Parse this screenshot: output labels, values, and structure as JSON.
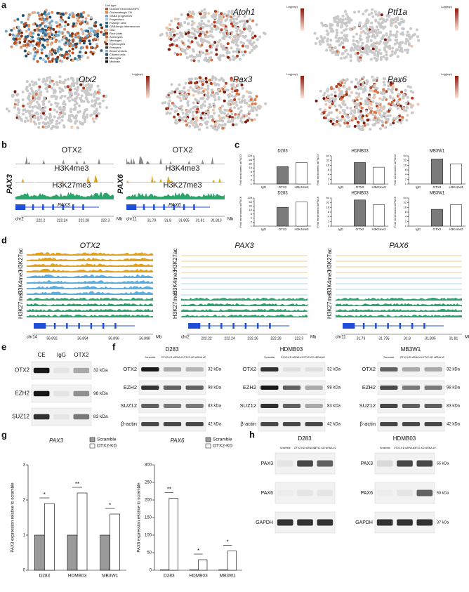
{
  "panel_labels": [
    "a",
    "b",
    "c",
    "d",
    "e",
    "f",
    "g",
    "h"
  ],
  "a": {
    "legend_title": "Cell type",
    "cell_types": [
      "Granule neurons/GNPs",
      "Glutamatergic CN",
      "GABA progenitors",
      "Progenitors",
      "Purkinje cells",
      "GABAergic interneurons",
      "Glia",
      "Roof plate",
      "Astrocytes",
      "Meninges",
      "Erythrocytes",
      "Pericytes",
      "Blood vessels",
      "Ciliated cells",
      "Microglia",
      "Midbrain"
    ],
    "genes": [
      "Atoh1",
      "Ptf1a",
      "Otx2",
      "Pax3",
      "Pax6"
    ],
    "scale_label": "Log(exp)"
  },
  "b": {
    "tracks": [
      "OTX2",
      "H3K4me3",
      "H3K27me3"
    ],
    "unit": "Mb",
    "loci": [
      {
        "gene": "PAX3",
        "chrom": "chr2",
        "ticks": [
          "222.2",
          "222.24",
          "222.28",
          "222.3"
        ]
      },
      {
        "gene": "PAX6",
        "chrom": "chr11",
        "ticks": [
          "31.79",
          "31.8",
          "31.805",
          "31.81",
          "31.813"
        ]
      }
    ]
  },
  "c": {
    "charts": [
      {
        "type": "bar",
        "title": "D283",
        "ylabel": "Fold enrichment at PAX3",
        "categories": [
          "IgG",
          "OTX2",
          "H3K4me3"
        ],
        "values": [
          1,
          20,
          40
        ],
        "log_scale": true,
        "ylim": [
          1,
          128
        ],
        "yticks": [
          1,
          2,
          4,
          8,
          16,
          32,
          64,
          128
        ],
        "color": "#777777"
      },
      {
        "type": "bar",
        "title": "HDMB03",
        "ylabel": "Fold enrichment at PAX3",
        "categories": [
          "IgG",
          "OTX2",
          "H3K4me3"
        ],
        "values": [
          1,
          24,
          12
        ],
        "log_scale": true,
        "ylim": [
          1,
          64
        ],
        "yticks": [
          1,
          2,
          4,
          8,
          16,
          32,
          64
        ],
        "color": "#777777"
      },
      {
        "type": "bar",
        "title": "MB3W1",
        "ylabel": "Fold enrichment at PAX3",
        "categories": [
          "IgG",
          "OTX2",
          "H3K4me3"
        ],
        "values": [
          1,
          40,
          20
        ],
        "log_scale": true,
        "ylim": [
          1,
          64
        ],
        "yticks": [
          1,
          2,
          4,
          8,
          16,
          32,
          64
        ],
        "color": "#777777"
      },
      {
        "type": "bar",
        "title": "D283",
        "ylabel": "Fold enrichment at PAX6",
        "categories": [
          "IgG",
          "OTX2",
          "H3K4me3"
        ],
        "values": [
          1,
          26,
          64
        ],
        "log_scale": true,
        "ylim": [
          1,
          128
        ],
        "yticks": [
          1,
          2,
          4,
          8,
          16,
          32,
          64,
          128
        ],
        "color": "#777777"
      },
      {
        "type": "bar",
        "title": "HDMB03",
        "ylabel": "Fold enrichment at PAX6",
        "categories": [
          "IgG",
          "OTX2",
          "H3K4me3"
        ],
        "values": [
          1,
          48,
          24
        ],
        "log_scale": true,
        "ylim": [
          1,
          64
        ],
        "yticks": [
          1,
          2,
          4,
          8,
          16,
          32,
          64
        ],
        "color": "#777777"
      },
      {
        "type": "bar",
        "title": "MB3W1",
        "ylabel": "Fold enrichment at PAX6",
        "categories": [
          "IgG",
          "OTX2",
          "H3K4me3"
        ],
        "values": [
          1,
          12,
          24
        ],
        "log_scale": true,
        "ylim": [
          1,
          64
        ],
        "yticks": [
          1,
          2,
          4,
          8,
          16,
          32,
          64
        ],
        "color": "#777777"
      }
    ]
  },
  "d": {
    "marks": [
      "H3K27ac",
      "H3K4me3",
      "H3K27me3"
    ],
    "unit": "Mb",
    "loci": [
      {
        "gene": "OTX2",
        "chrom": "chr14",
        "ticks": [
          "56.892",
          "56.894",
          "56.896",
          "56.898"
        ]
      },
      {
        "gene": "PAX3",
        "chrom": "chr2",
        "ticks": [
          "222.22",
          "222.24",
          "222.26",
          "222.28",
          "222.3"
        ]
      },
      {
        "gene": "PAX6",
        "chrom": "chr11",
        "ticks": [
          "31.79",
          "31.795",
          "31.8",
          "31.805",
          "31.81"
        ]
      }
    ]
  },
  "e": {
    "lanes": [
      "CE",
      "IgG",
      "OTX2"
    ],
    "rows": [
      {
        "protein": "OTX2",
        "size": "32 kDa"
      },
      {
        "protein": "EZH2",
        "size": "98 kDa"
      },
      {
        "protein": "SUZ12",
        "size": "83 kDa"
      }
    ]
  },
  "f": {
    "lanes": [
      "Scramble",
      "OTX2-KD siRNA #1",
      "OTX2-KD siRNA #2"
    ],
    "cell_lines": [
      "D283",
      "HDMB03",
      "MB3W1"
    ],
    "rows": [
      {
        "protein": "OTX2",
        "size": "32 kDa"
      },
      {
        "protein": "EZH2",
        "size": "98 kDa"
      },
      {
        "protein": "SUZ12",
        "size": "83 kDa"
      },
      {
        "protein": "β-actin",
        "size": "42 kDa"
      }
    ]
  },
  "g": {
    "charts": [
      {
        "type": "grouped_bar",
        "title": "PAX3",
        "ylabel": "PAX3 expression relative to scramble",
        "categories": [
          "D283",
          "HDMB03",
          "MB3W1"
        ],
        "ylim": [
          0,
          3
        ],
        "yticks": [
          0,
          1,
          2,
          3
        ],
        "legend": "upper right",
        "series": [
          {
            "name": "Scramble",
            "color": "#9a9a9a",
            "values": [
              1,
              1,
              1
            ]
          },
          {
            "name": "OTX2-KD",
            "color": "#ffffff",
            "values": [
              1.9,
              2.2,
              1.6
            ]
          }
        ],
        "significance": [
          "*",
          "**",
          "*"
        ]
      },
      {
        "type": "grouped_bar",
        "title": "PAX6",
        "ylabel": "PAX6 expression relative to scramble",
        "categories": [
          "D283",
          "HDMB03",
          "MB3W1"
        ],
        "ylim": [
          0,
          300
        ],
        "yticks": [
          0,
          50,
          100,
          150,
          200,
          250,
          300
        ],
        "legend": "upper right",
        "series": [
          {
            "name": "Scramble",
            "color": "#9a9a9a",
            "values": [
              1,
              1,
              1
            ]
          },
          {
            "name": "OTX2-KD",
            "color": "#ffffff",
            "values": [
              205,
              30,
              55
            ]
          }
        ],
        "significance": [
          "**",
          "*",
          "*"
        ]
      }
    ]
  },
  "h": {
    "lanes": [
      "Scramble",
      "OTX2-KD siRNA #1",
      "OTX2-KD siRNA #2"
    ],
    "blots": [
      {
        "cell_line": "D283",
        "rows": [
          {
            "protein": "PAX3"
          },
          {
            "protein": "PAX6"
          },
          {
            "protein": "GAPDH"
          }
        ]
      },
      {
        "cell_line": "HDMB03",
        "rows": [
          {
            "protein": "PAX3",
            "size": "55 kDa"
          },
          {
            "protein": "PAX6",
            "size": "50 kDa"
          },
          {
            "protein": "GAPDH",
            "size": "37 kDa"
          }
        ]
      }
    ]
  }
}
